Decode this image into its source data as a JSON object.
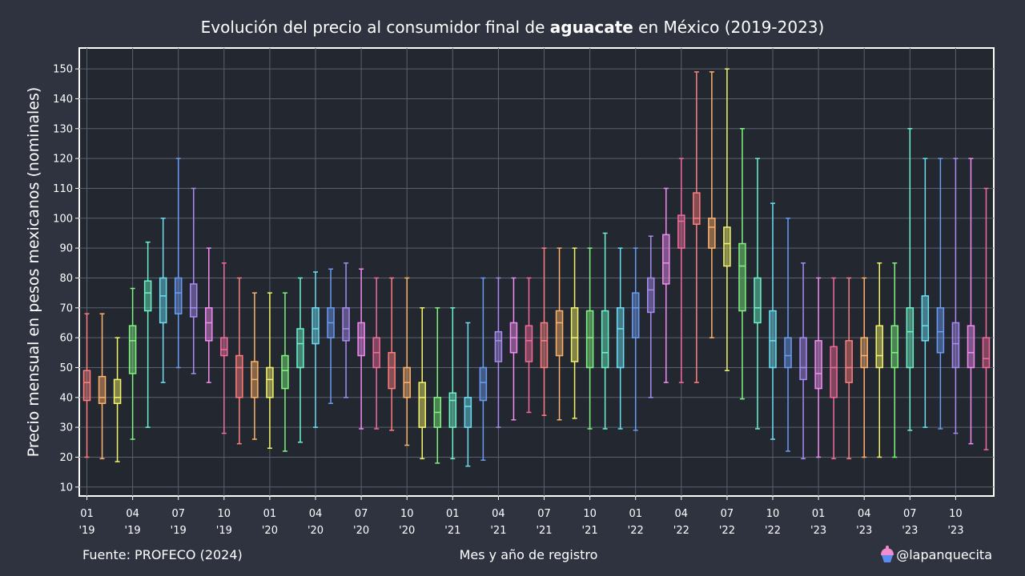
{
  "title": {
    "prefix": "Evolución del precio al consumidor final de ",
    "bold": "aguacate",
    "suffix": " en México (2019-2023)"
  },
  "footer": {
    "source": "Fuente: PROFECO (2024)",
    "author": "@lapanquecita"
  },
  "chart_data": {
    "type": "boxplot",
    "title": "Evolución del precio al consumidor final de aguacate en México (2019-2023)",
    "xlabel": "Mes y año de registro",
    "ylabel": "Precio mensual en pesos mexicanos (nominales)",
    "ylim": [
      7,
      157
    ],
    "yticks": [
      10,
      20,
      30,
      40,
      50,
      60,
      70,
      80,
      90,
      100,
      110,
      120,
      130,
      140,
      150
    ],
    "xticks": [
      {
        "index": 0,
        "month": "01",
        "year": "'19"
      },
      {
        "index": 3,
        "month": "04",
        "year": "'19"
      },
      {
        "index": 6,
        "month": "07",
        "year": "'19"
      },
      {
        "index": 9,
        "month": "10",
        "year": "'19"
      },
      {
        "index": 12,
        "month": "01",
        "year": "'20"
      },
      {
        "index": 15,
        "month": "04",
        "year": "'20"
      },
      {
        "index": 18,
        "month": "07",
        "year": "'20"
      },
      {
        "index": 21,
        "month": "10",
        "year": "'20"
      },
      {
        "index": 24,
        "month": "01",
        "year": "'21"
      },
      {
        "index": 27,
        "month": "04",
        "year": "'21"
      },
      {
        "index": 30,
        "month": "07",
        "year": "'21"
      },
      {
        "index": 33,
        "month": "10",
        "year": "'21"
      },
      {
        "index": 36,
        "month": "01",
        "year": "'22"
      },
      {
        "index": 39,
        "month": "04",
        "year": "'22"
      },
      {
        "index": 42,
        "month": "07",
        "year": "'22"
      },
      {
        "index": 45,
        "month": "10",
        "year": "'22"
      },
      {
        "index": 48,
        "month": "01",
        "year": "'23"
      },
      {
        "index": 51,
        "month": "04",
        "year": "'23"
      },
      {
        "index": 54,
        "month": "07",
        "year": "'23"
      },
      {
        "index": 57,
        "month": "10",
        "year": "'23"
      }
    ],
    "grid": true,
    "colors": [
      "#ff7f7f",
      "#ffb26b",
      "#f4f46b",
      "#7ff47f",
      "#6bf4c8",
      "#6be0f4",
      "#6b9cf4",
      "#a88cf4",
      "#f48cf4",
      "#f46b9c"
    ],
    "boxes": [
      {
        "date": "2019-01",
        "min": 20,
        "q1": 39,
        "median": 45,
        "q3": 49,
        "max": 68
      },
      {
        "date": "2019-02",
        "min": 19.5,
        "q1": 38,
        "median": 40,
        "q3": 47,
        "max": 68
      },
      {
        "date": "2019-03",
        "min": 18.5,
        "q1": 38,
        "median": 40,
        "q3": 46,
        "max": 60
      },
      {
        "date": "2019-04",
        "min": 26,
        "q1": 48,
        "median": 59,
        "q3": 64,
        "max": 76.5
      },
      {
        "date": "2019-05",
        "min": 30,
        "q1": 69,
        "median": 75,
        "q3": 79,
        "max": 92
      },
      {
        "date": "2019-06",
        "min": 45,
        "q1": 65,
        "median": 74,
        "q3": 80,
        "max": 100
      },
      {
        "date": "2019-07",
        "min": 50,
        "q1": 68,
        "median": 75,
        "q3": 80,
        "max": 120
      },
      {
        "date": "2019-08",
        "min": 48,
        "q1": 67,
        "median": 70,
        "q3": 78,
        "max": 110
      },
      {
        "date": "2019-09",
        "min": 45,
        "q1": 59,
        "median": 65,
        "q3": 70,
        "max": 90
      },
      {
        "date": "2019-10",
        "min": 28,
        "q1": 54,
        "median": 56,
        "q3": 60,
        "max": 85
      },
      {
        "date": "2019-11",
        "min": 24.5,
        "q1": 40,
        "median": 50,
        "q3": 54,
        "max": 80
      },
      {
        "date": "2019-12",
        "min": 26,
        "q1": 40,
        "median": 46,
        "q3": 52,
        "max": 75
      },
      {
        "date": "2020-01",
        "min": 23,
        "q1": 40,
        "median": 46,
        "q3": 50,
        "max": 75
      },
      {
        "date": "2020-02",
        "min": 22,
        "q1": 43,
        "median": 49,
        "q3": 54,
        "max": 75
      },
      {
        "date": "2020-03",
        "min": 25,
        "q1": 50,
        "median": 58,
        "q3": 63,
        "max": 80
      },
      {
        "date": "2020-04",
        "min": 30,
        "q1": 58,
        "median": 63,
        "q3": 70,
        "max": 82
      },
      {
        "date": "2020-05",
        "min": 38,
        "q1": 60,
        "median": 65,
        "q3": 70,
        "max": 83
      },
      {
        "date": "2020-06",
        "min": 40,
        "q1": 59,
        "median": 63,
        "q3": 70,
        "max": 85
      },
      {
        "date": "2020-07",
        "min": 29.5,
        "q1": 54,
        "median": 60,
        "q3": 65,
        "max": 83
      },
      {
        "date": "2020-08",
        "min": 29.5,
        "q1": 50,
        "median": 55,
        "q3": 60,
        "max": 80
      },
      {
        "date": "2020-09",
        "min": 29,
        "q1": 43,
        "median": 50,
        "q3": 55,
        "max": 80
      },
      {
        "date": "2020-10",
        "min": 24,
        "q1": 40,
        "median": 45,
        "q3": 50,
        "max": 80
      },
      {
        "date": "2020-11",
        "min": 19.5,
        "q1": 30,
        "median": 40,
        "q3": 45,
        "max": 70
      },
      {
        "date": "2020-12",
        "min": 18,
        "q1": 30,
        "median": 35,
        "q3": 40,
        "max": 70
      },
      {
        "date": "2021-01",
        "min": 19.5,
        "q1": 30,
        "median": 39,
        "q3": 41.5,
        "max": 70
      },
      {
        "date": "2021-02",
        "min": 17,
        "q1": 30,
        "median": 37,
        "q3": 40,
        "max": 65
      },
      {
        "date": "2021-03",
        "min": 19,
        "q1": 39,
        "median": 45,
        "q3": 50,
        "max": 80
      },
      {
        "date": "2021-04",
        "min": 30,
        "q1": 52,
        "median": 59,
        "q3": 62,
        "max": 80
      },
      {
        "date": "2021-05",
        "min": 32.5,
        "q1": 55,
        "median": 60,
        "q3": 65,
        "max": 80
      },
      {
        "date": "2021-06",
        "min": 35,
        "q1": 52,
        "median": 59,
        "q3": 64,
        "max": 80
      },
      {
        "date": "2021-07",
        "min": 34,
        "q1": 50,
        "median": 59,
        "q3": 65,
        "max": 90
      },
      {
        "date": "2021-08",
        "min": 32.5,
        "q1": 54,
        "median": 65,
        "q3": 69,
        "max": 90
      },
      {
        "date": "2021-09",
        "min": 33,
        "q1": 52,
        "median": 60,
        "q3": 70,
        "max": 90
      },
      {
        "date": "2021-10",
        "min": 29.5,
        "q1": 50,
        "median": 60,
        "q3": 69,
        "max": 90
      },
      {
        "date": "2021-11",
        "min": 29.5,
        "q1": 50,
        "median": 55,
        "q3": 69,
        "max": 95
      },
      {
        "date": "2021-12",
        "min": 29.5,
        "q1": 50,
        "median": 63,
        "q3": 70,
        "max": 90
      },
      {
        "date": "2022-01",
        "min": 29,
        "q1": 60,
        "median": 70,
        "q3": 75,
        "max": 90
      },
      {
        "date": "2022-02",
        "min": 40,
        "q1": 68.5,
        "median": 76,
        "q3": 80,
        "max": 94
      },
      {
        "date": "2022-03",
        "min": 45,
        "q1": 78,
        "median": 85,
        "q3": 94.5,
        "max": 110
      },
      {
        "date": "2022-04",
        "min": 45,
        "q1": 90,
        "median": 99,
        "q3": 101,
        "max": 120
      },
      {
        "date": "2022-05",
        "min": 45,
        "q1": 98,
        "median": 100,
        "q3": 108.5,
        "max": 149
      },
      {
        "date": "2022-06",
        "min": 60,
        "q1": 90,
        "median": 97,
        "q3": 100,
        "max": 149
      },
      {
        "date": "2022-07",
        "min": 49,
        "q1": 84,
        "median": 91.5,
        "q3": 97,
        "max": 150
      },
      {
        "date": "2022-08",
        "min": 39.5,
        "q1": 69,
        "median": 84,
        "q3": 91.5,
        "max": 130
      },
      {
        "date": "2022-09",
        "min": 29.5,
        "q1": 65,
        "median": 70,
        "q3": 80,
        "max": 120
      },
      {
        "date": "2022-10",
        "min": 26,
        "q1": 50,
        "median": 59,
        "q3": 69,
        "max": 105
      },
      {
        "date": "2022-11",
        "min": 22,
        "q1": 50,
        "median": 54,
        "q3": 60,
        "max": 100
      },
      {
        "date": "2022-12",
        "min": 19.5,
        "q1": 46,
        "median": 50,
        "q3": 60,
        "max": 85
      },
      {
        "date": "2023-01",
        "min": 20,
        "q1": 43,
        "median": 48,
        "q3": 59,
        "max": 80
      },
      {
        "date": "2023-02",
        "min": 19.5,
        "q1": 40,
        "median": 50,
        "q3": 57,
        "max": 80
      },
      {
        "date": "2023-03",
        "min": 19.5,
        "q1": 45,
        "median": 50,
        "q3": 59,
        "max": 80
      },
      {
        "date": "2023-04",
        "min": 20,
        "q1": 50,
        "median": 54,
        "q3": 60,
        "max": 80
      },
      {
        "date": "2023-05",
        "min": 20,
        "q1": 50,
        "median": 54,
        "q3": 64,
        "max": 85
      },
      {
        "date": "2023-06",
        "min": 20,
        "q1": 50,
        "median": 55,
        "q3": 64,
        "max": 85
      },
      {
        "date": "2023-07",
        "min": 29,
        "q1": 50,
        "median": 62,
        "q3": 70,
        "max": 130
      },
      {
        "date": "2023-08",
        "min": 30,
        "q1": 59,
        "median": 64,
        "q3": 74,
        "max": 120
      },
      {
        "date": "2023-09",
        "min": 29.5,
        "q1": 55,
        "median": 62,
        "q3": 70,
        "max": 120
      },
      {
        "date": "2023-10",
        "min": 28,
        "q1": 50,
        "median": 58,
        "q3": 65,
        "max": 120
      },
      {
        "date": "2023-11",
        "min": 24.5,
        "q1": 50,
        "median": 55,
        "q3": 64,
        "max": 120
      },
      {
        "date": "2023-12",
        "min": 22.5,
        "q1": 50,
        "median": 53,
        "q3": 60,
        "max": 110
      }
    ]
  }
}
